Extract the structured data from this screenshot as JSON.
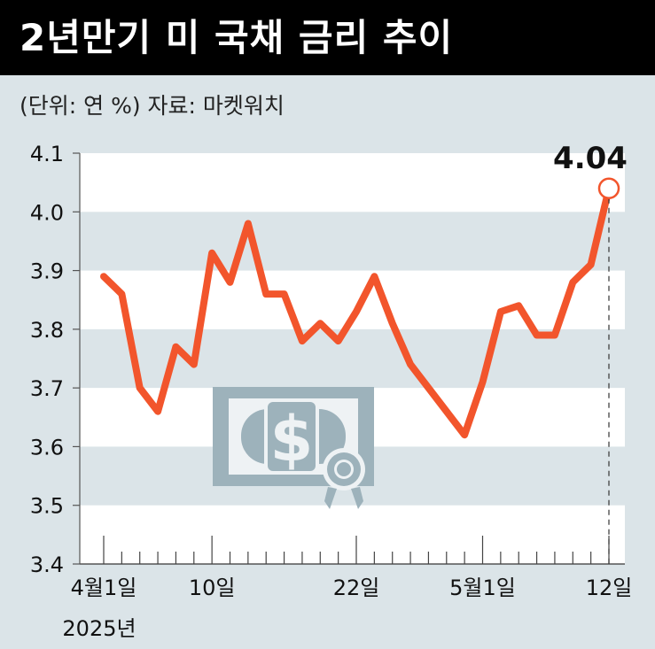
{
  "header": {
    "title": "2년만기 미 국채 금리 추이",
    "subtitle": "(단위: 연 %)  자료: 마켓워치"
  },
  "colors": {
    "background": "#dbe4e8",
    "band": "#ffffff",
    "line": "#f2552c",
    "header_bg": "#000000",
    "icon": "#9db2bb"
  },
  "icon": "dollar-bill-icon",
  "chart_data": {
    "type": "line",
    "ylim": [
      3.4,
      4.1
    ],
    "yticks": [
      "4.1",
      "4.0",
      "3.9",
      "3.8",
      "3.7",
      "3.6",
      "3.5",
      "3.4"
    ],
    "xtick_labels": [
      "4월1일",
      "10일",
      "22일",
      "5월1일",
      "12일"
    ],
    "year_label": "2025년",
    "series": [
      {
        "values": [
          3.89,
          3.86,
          3.7,
          3.66,
          3.77,
          3.74,
          3.93,
          3.88,
          3.98,
          3.86,
          3.86,
          3.78,
          3.81,
          3.78,
          3.83,
          3.89,
          3.81,
          3.74,
          3.7,
          3.66,
          3.62,
          3.71,
          3.83,
          3.84,
          3.79,
          3.79,
          3.88,
          3.91,
          4.04
        ]
      }
    ],
    "last_value_label": "4.04",
    "grid": "alternating horizontal bands"
  }
}
